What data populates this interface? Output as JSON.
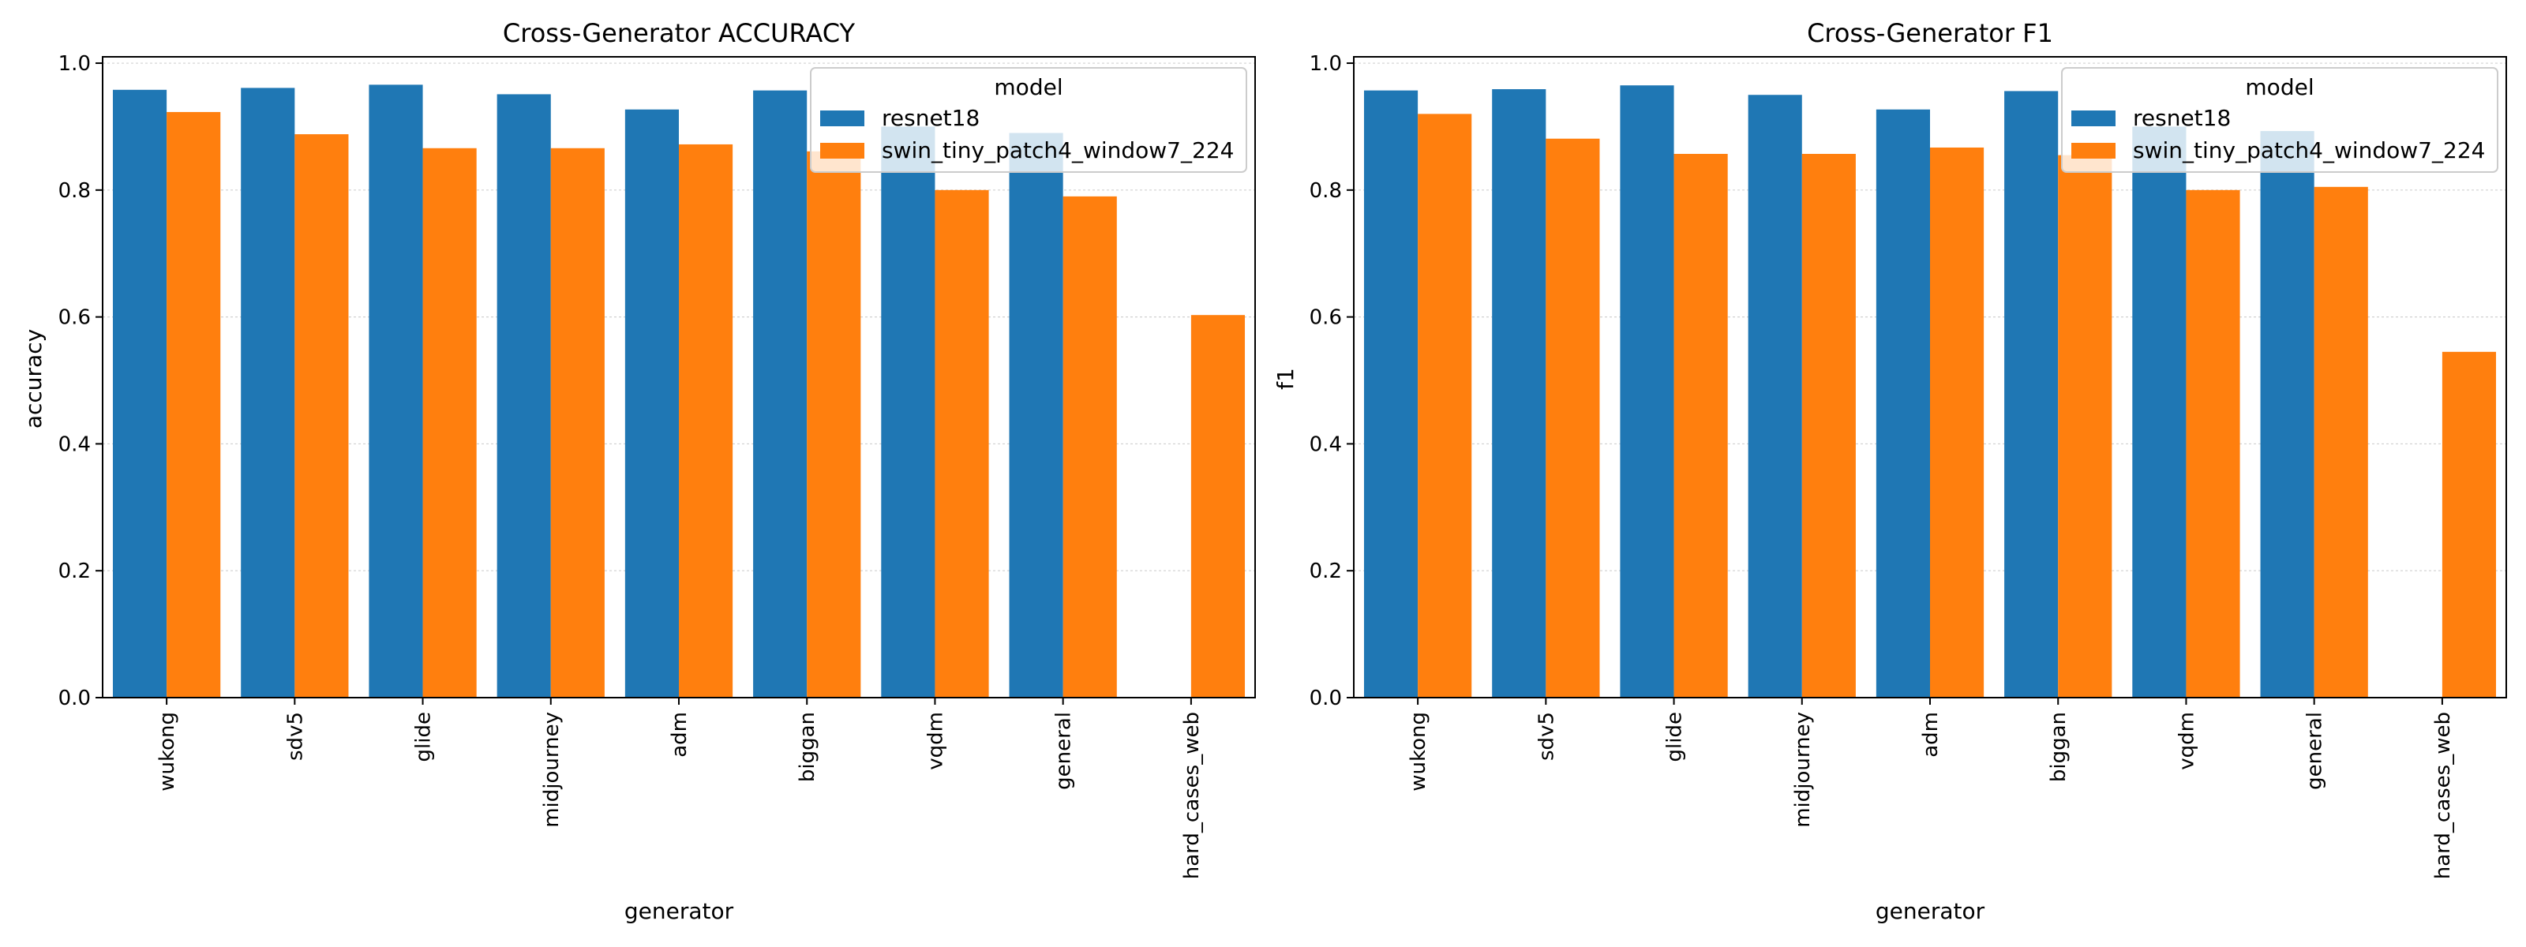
{
  "figure": {
    "background": "#ffffff"
  },
  "chart_data": [
    {
      "type": "bar",
      "title": "Cross-Generator ACCURACY",
      "xlabel": "generator",
      "ylabel": "accuracy",
      "ylim": [
        0,
        1.01
      ],
      "yticks": [
        "0.0",
        "0.2",
        "0.4",
        "0.6",
        "0.8",
        "1.0"
      ],
      "grid": "horizontal dotted",
      "categories": [
        "wukong",
        "sdv5",
        "glide",
        "midjourney",
        "adm",
        "biggan",
        "vqdm",
        "general",
        "hard_cases_web"
      ],
      "legend": {
        "title": "model",
        "placement": "top-right"
      },
      "series": [
        {
          "name": "resnet18",
          "color": "#1f77b4",
          "values": [
            0.958,
            0.961,
            0.966,
            0.951,
            0.927,
            0.957,
            0.9,
            0.89,
            null
          ]
        },
        {
          "name": "swin_tiny_patch4_window7_224",
          "color": "#ff7f0e",
          "values": [
            0.923,
            0.888,
            0.866,
            0.866,
            0.872,
            0.861,
            0.8,
            0.79,
            0.603
          ]
        }
      ]
    },
    {
      "type": "bar",
      "title": "Cross-Generator F1",
      "xlabel": "generator",
      "ylabel": "f1",
      "ylim": [
        0,
        1.01
      ],
      "yticks": [
        "0.0",
        "0.2",
        "0.4",
        "0.6",
        "0.8",
        "1.0"
      ],
      "grid": "horizontal dotted",
      "categories": [
        "wukong",
        "sdv5",
        "glide",
        "midjourney",
        "adm",
        "biggan",
        "vqdm",
        "general",
        "hard_cases_web"
      ],
      "legend": {
        "title": "model",
        "placement": "top-right"
      },
      "series": [
        {
          "name": "resnet18",
          "color": "#1f77b4",
          "values": [
            0.957,
            0.959,
            0.965,
            0.95,
            0.927,
            0.956,
            0.9,
            0.893,
            null
          ]
        },
        {
          "name": "swin_tiny_patch4_window7_224",
          "color": "#ff7f0e",
          "values": [
            0.92,
            0.881,
            0.857,
            0.857,
            0.867,
            0.855,
            0.8,
            0.805,
            0.545
          ]
        }
      ]
    }
  ]
}
